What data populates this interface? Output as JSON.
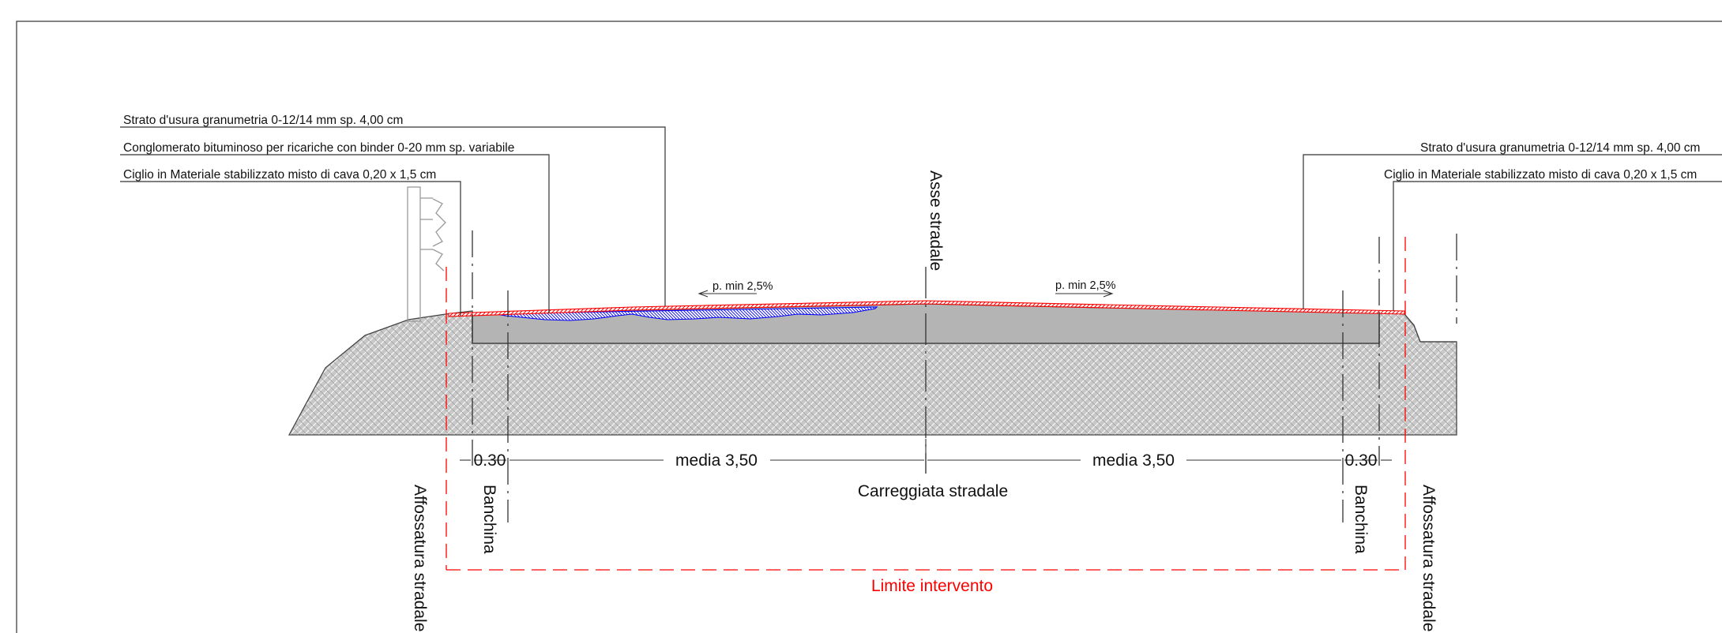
{
  "labels": {
    "left_layer_1": "Strato d'usura granumetria 0-12/14 mm sp. 4,00 cm",
    "left_layer_2": "Conglomerato bituminoso per ricariche con binder 0-20 mm sp. variabile",
    "left_layer_3": "Ciglio in Materiale stabilizzato misto di cava 0,20 x 1,5 cm",
    "right_layer_1": "Strato d'usura granumetria 0-12/14 mm sp. 4,00 cm",
    "right_layer_2": "Ciglio in Materiale stabilizzato misto di cava 0,20 x 1,5 cm",
    "axis": "Asse stradale",
    "slope_left": "p. min 2,5%",
    "slope_right": "p. min 2,5%",
    "shoulder_left_width": "0.30",
    "shoulder_right_width": "0.30",
    "lane_left_width": "media 3,50",
    "lane_right_width": "media 3,50",
    "carriageway": "Carreggiata stradale",
    "shoulder_left": "Banchina",
    "shoulder_right": "Banchina",
    "ditch_left": "Affossatura stradale",
    "ditch_right": "Affossatura stradale",
    "intervention_limit": "Limite intervento"
  },
  "colors": {
    "wearing_course": "#ff0000",
    "binder_course": "#0000ff",
    "intervention_limit": "#ff0000",
    "pavement_fill": "#b4b4b4",
    "subgrade_fill": "#c8c8c8"
  }
}
